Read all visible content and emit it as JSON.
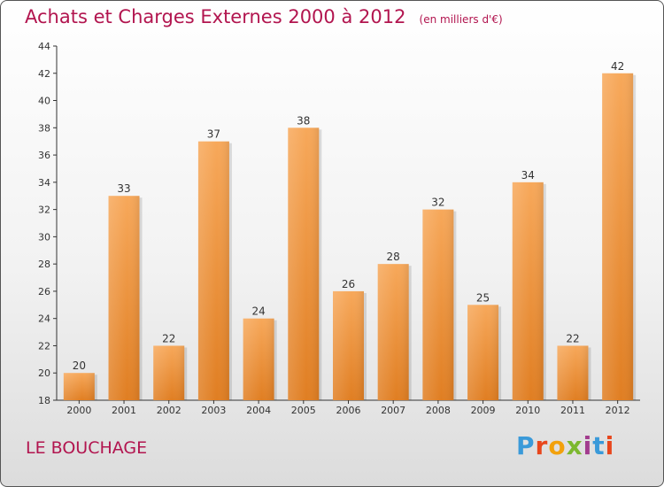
{
  "header": {
    "title": "Achats et Charges Externes 2000 à 2012",
    "unit": "(en milliers d'€)"
  },
  "footer": {
    "commune": "LE BOUCHAGE",
    "brand": "Proxiti"
  },
  "colors": {
    "accent": "#b2154f",
    "bar_light": "#f7a85a",
    "bar_dark": "#e07e22"
  },
  "chart_data": {
    "type": "bar",
    "title": "Achats et Charges Externes 2000 à 2012",
    "subtitle": "(en milliers d'€)",
    "xlabel": "",
    "ylabel": "",
    "categories": [
      "2000",
      "2001",
      "2002",
      "2003",
      "2004",
      "2005",
      "2006",
      "2007",
      "2008",
      "2009",
      "2010",
      "2011",
      "2012"
    ],
    "values": [
      20,
      33,
      22,
      37,
      24,
      38,
      26,
      28,
      32,
      25,
      34,
      22,
      42
    ],
    "ylim": [
      18,
      44
    ],
    "yticks": [
      18,
      20,
      22,
      24,
      26,
      28,
      30,
      32,
      34,
      36,
      38,
      40,
      42,
      44
    ],
    "grid": false,
    "legend": "none"
  }
}
